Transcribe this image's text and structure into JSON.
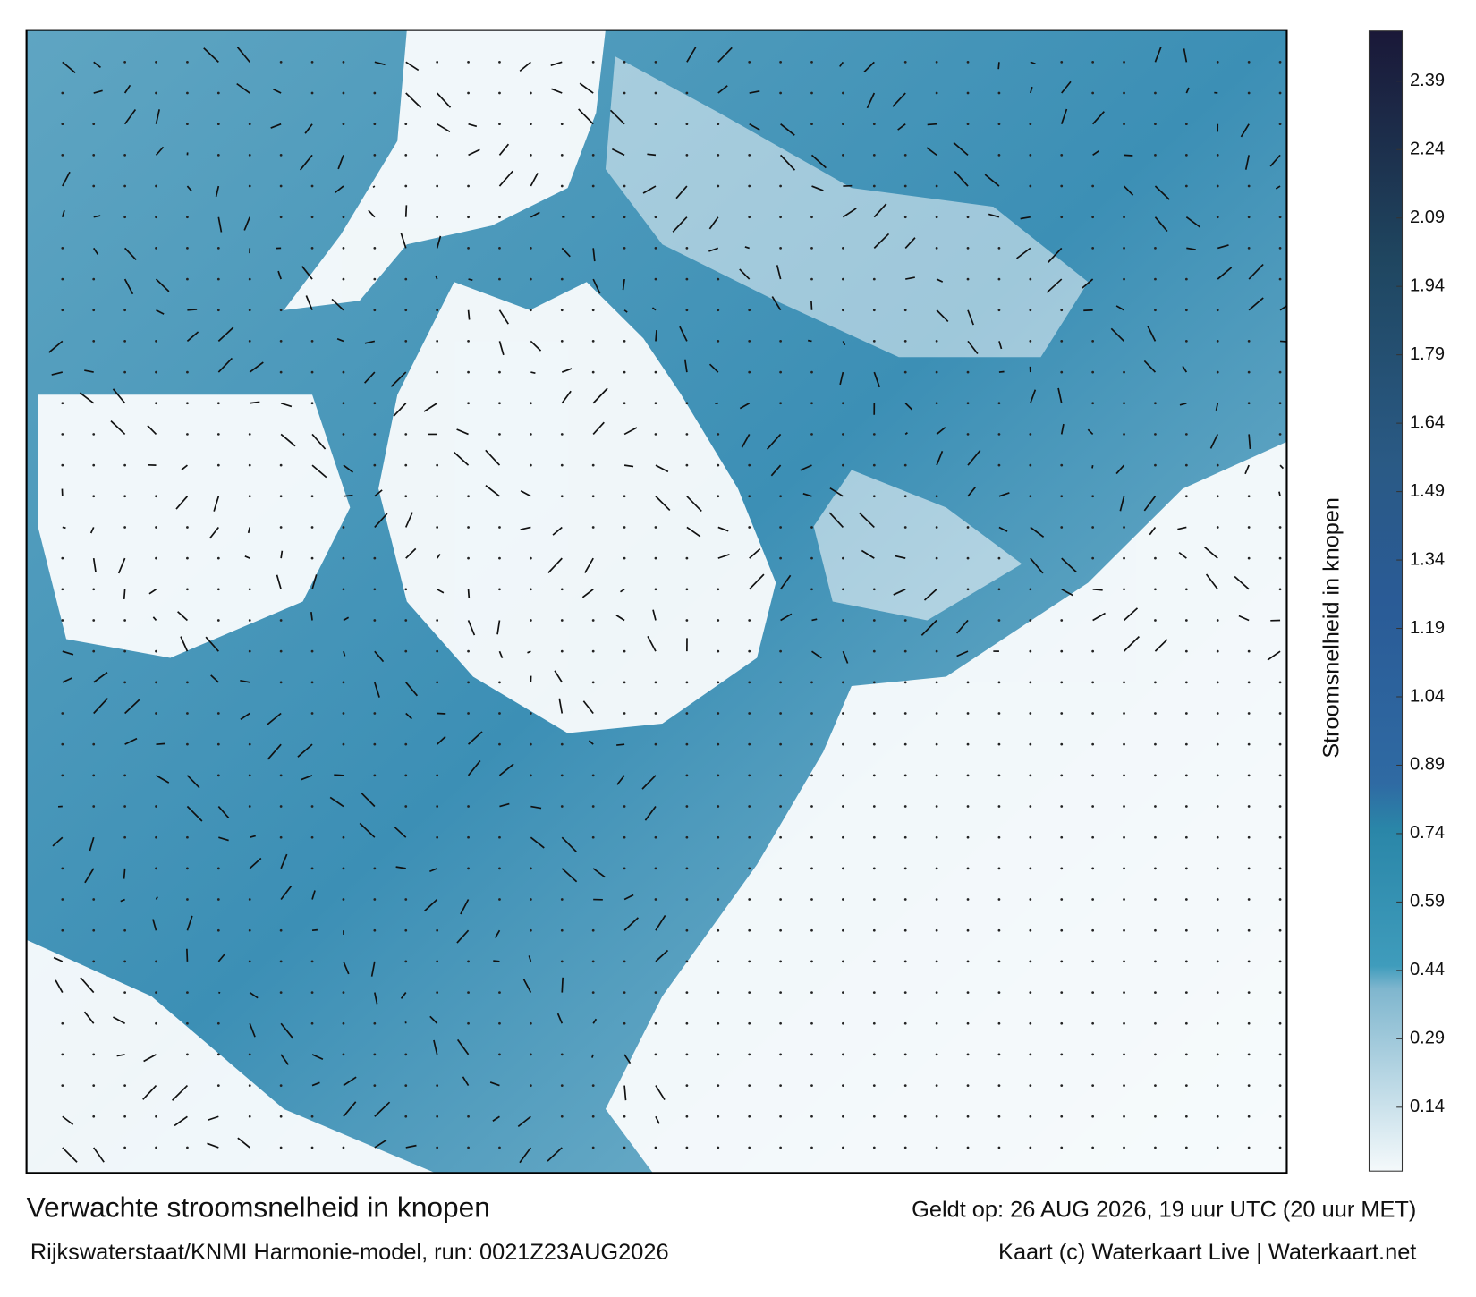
{
  "map": {
    "title": "Verwachte stroomsnelheid in knopen",
    "source": "Rijkswaterstaat/KNMI Harmonie-model, run: 0021Z23AUG2026",
    "valid": "Geldt op: 26 AUG 2026, 19 uur UTC (20 uur MET)",
    "credit": "Kaart (c) Waterkaart Live | Waterkaart.net"
  },
  "colorbar": {
    "label": "Stroomsnelheid in knopen",
    "lim": [
      0,
      2.5
    ],
    "ticks": [
      0.14,
      0.29,
      0.44,
      0.59,
      0.74,
      0.89,
      1.04,
      1.19,
      1.34,
      1.49,
      1.64,
      1.79,
      1.94,
      2.09,
      2.24,
      2.39
    ]
  }
}
